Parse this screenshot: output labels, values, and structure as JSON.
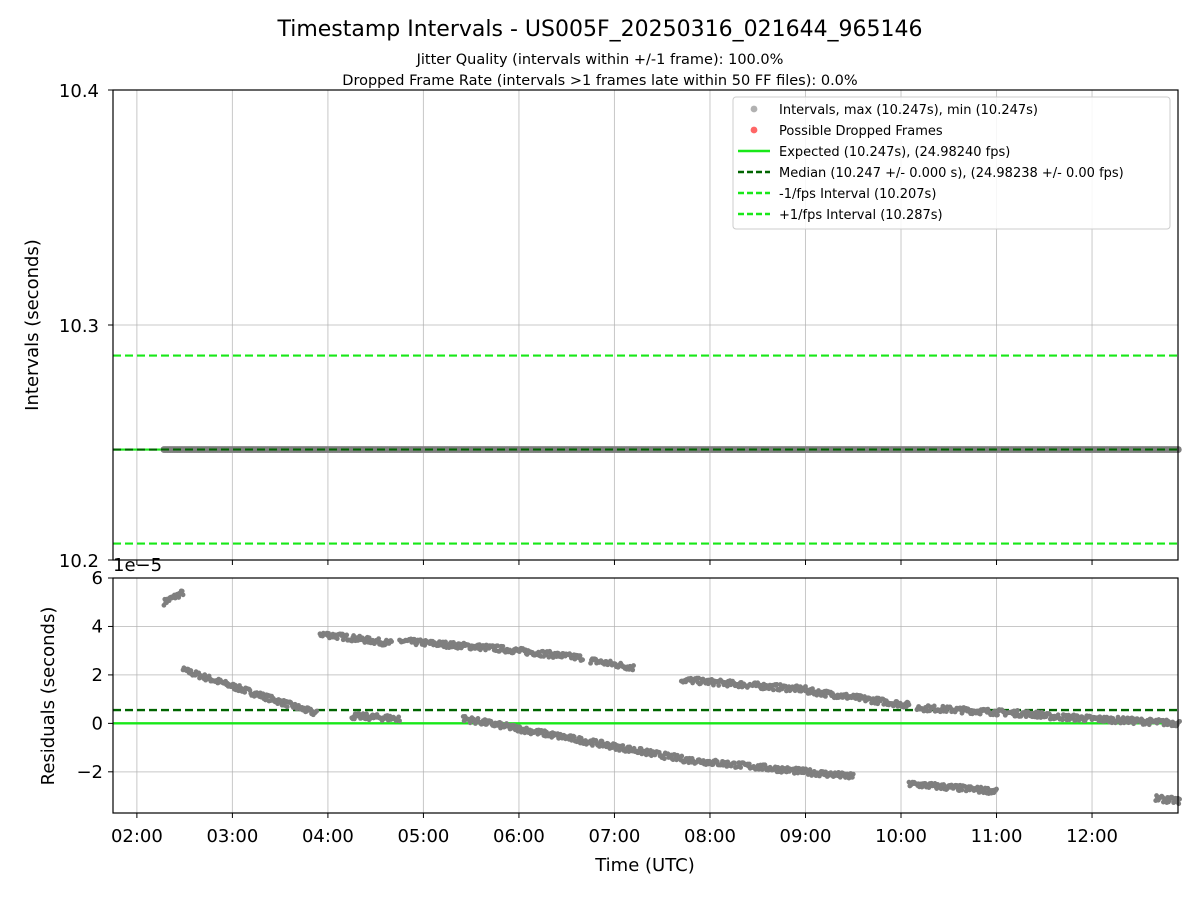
{
  "figure": {
    "title": "Timestamp Intervals - US005F_20250316_021644_965146",
    "subtitle_1": "Jitter Quality (intervals within +/-1 frame): 100.0%",
    "subtitle_2": "Dropped Frame Rate (intervals >1 frames late within 50 FF files): 0.0%"
  },
  "chart_data": [
    {
      "type": "scatter",
      "panel": "top",
      "ylabel": "Intervals (seconds)",
      "xlabel": "",
      "x_range_hours": [
        1.75,
        12.9
      ],
      "ylim": [
        10.2,
        10.4
      ],
      "yticks": [
        "10.2",
        "10.3",
        "10.4"
      ],
      "grid": true,
      "legend_position": "top-right",
      "legend": [
        {
          "label": "Intervals, max (10.247s), min (10.247s)",
          "kind": "marker",
          "color": "#a9a9a9"
        },
        {
          "label": "Possible Dropped Frames",
          "kind": "marker",
          "color": "#ff6666"
        },
        {
          "label": "Expected (10.247s), (24.98240 fps)",
          "kind": "solid",
          "color": "#18e818"
        },
        {
          "label": "Median (10.247 +/- 0.000 s), (24.98238 +/- 0.00 fps)",
          "kind": "dashed",
          "color": "#006400"
        },
        {
          "label": "-1/fps Interval (10.207s)",
          "kind": "dashed",
          "color": "#18e818"
        },
        {
          "label": "+1/fps Interval (10.287s)",
          "kind": "dashed",
          "color": "#18e818"
        }
      ],
      "series": [
        {
          "name": "Intervals, max (10.247s), min (10.247s)",
          "x_start": "02:17",
          "x_end": "12:55",
          "y": 10.247,
          "color": "#7f7f7f"
        },
        {
          "name": "Expected (10.247s), (24.98240 fps)",
          "y": 10.247,
          "color": "#18e818"
        },
        {
          "name": "Median (10.247 +/- 0.000 s), (24.98238 +/- 0.00 fps)",
          "y": 10.247,
          "color": "#006400"
        },
        {
          "name": "-1/fps Interval (10.207s)",
          "y": 10.207,
          "color": "#18e818"
        },
        {
          "name": "+1/fps Interval (10.287s)",
          "y": 10.287,
          "color": "#18e818"
        }
      ]
    },
    {
      "type": "scatter",
      "panel": "bottom",
      "ylabel": "Residuals (seconds)",
      "xlabel": "Time (UTC)",
      "offset_label": "1e−5",
      "x_range_hours": [
        1.75,
        12.9
      ],
      "ylim": [
        -3.7,
        6
      ],
      "yticks": [
        {
          "value": -2,
          "label": "−2"
        },
        {
          "value": 0,
          "label": "0"
        },
        {
          "value": 2,
          "label": "2"
        },
        {
          "value": 4,
          "label": "4"
        },
        {
          "value": 6,
          "label": "6"
        }
      ],
      "xticks": [
        "02:00",
        "03:00",
        "04:00",
        "05:00",
        "06:00",
        "07:00",
        "08:00",
        "09:00",
        "10:00",
        "11:00",
        "12:00"
      ],
      "grid": true,
      "reference_lines": [
        {
          "name": "Expected",
          "y": 0,
          "color": "#18e818",
          "style": "solid"
        },
        {
          "name": "Median",
          "y": 0.55,
          "color": "#006400",
          "style": "dashed"
        }
      ],
      "point_color": "#7f7f7f",
      "segments": [
        {
          "x": [
            "02:17",
            "02:29"
          ],
          "y": [
            5.0,
            5.4
          ]
        },
        {
          "x": [
            "02:29",
            "03:53"
          ],
          "y": [
            2.2,
            0.4
          ]
        },
        {
          "x": [
            "03:55",
            "04:40"
          ],
          "y": [
            3.7,
            3.3
          ]
        },
        {
          "x": [
            "04:45",
            "05:45"
          ],
          "y": [
            3.4,
            3.1
          ]
        },
        {
          "x": [
            "05:45",
            "06:40"
          ],
          "y": [
            3.1,
            2.7
          ]
        },
        {
          "x": [
            "06:45",
            "07:12"
          ],
          "y": [
            2.6,
            2.3
          ]
        },
        {
          "x": [
            "07:42",
            "09:00"
          ],
          "y": [
            1.8,
            1.4
          ]
        },
        {
          "x": [
            "09:00",
            "10:05"
          ],
          "y": [
            1.35,
            0.75
          ]
        },
        {
          "x": [
            "10:10",
            "11:30"
          ],
          "y": [
            0.65,
            0.35
          ]
        },
        {
          "x": [
            "11:30",
            "12:55"
          ],
          "y": [
            0.3,
            0.0
          ]
        },
        {
          "x": [
            "04:15",
            "04:45"
          ],
          "y": [
            0.3,
            0.2
          ]
        },
        {
          "x": [
            "05:25",
            "07:45"
          ],
          "y": [
            0.2,
            -1.5
          ]
        },
        {
          "x": [
            "07:45",
            "09:30"
          ],
          "y": [
            -1.5,
            -2.2
          ]
        },
        {
          "x": [
            "10:05",
            "11:00"
          ],
          "y": [
            -2.5,
            -2.8
          ]
        },
        {
          "x": [
            "12:40",
            "12:55"
          ],
          "y": [
            -3.1,
            -3.2
          ]
        }
      ]
    }
  ]
}
